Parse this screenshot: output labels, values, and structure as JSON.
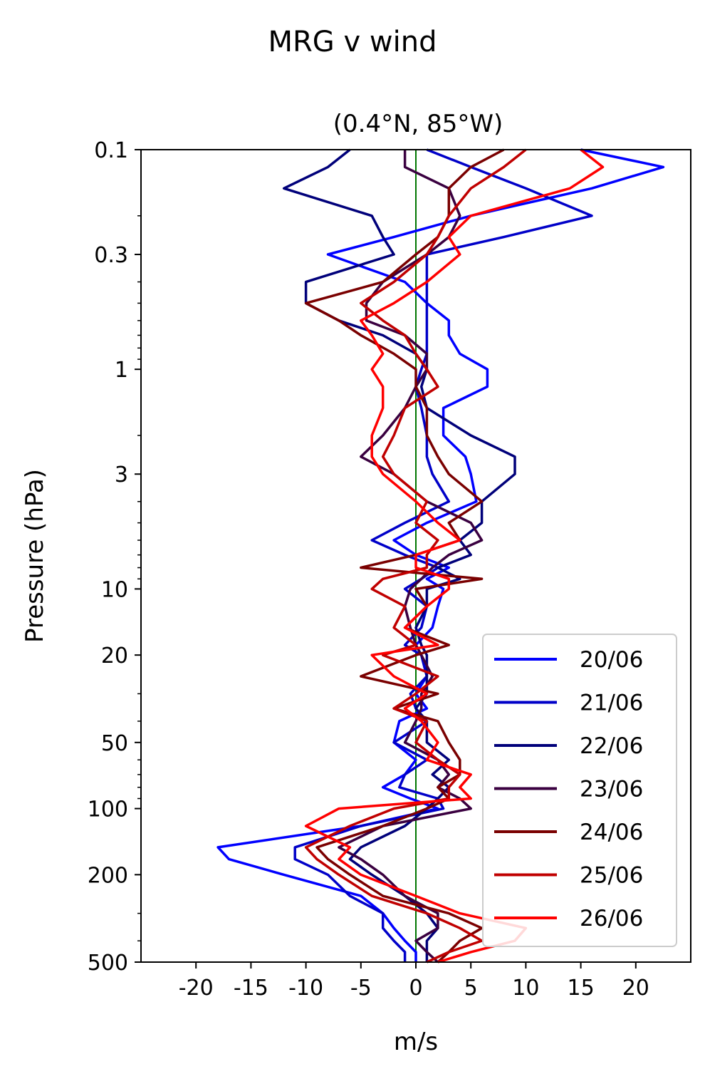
{
  "chart_data": {
    "type": "line",
    "title": "MRG v wind",
    "subtitle": "(0.4°N, 85°W)",
    "xlabel": "m/s",
    "ylabel": "Pressure (hPa)",
    "xlim": [
      -25,
      25
    ],
    "ylim": [
      500,
      0.1
    ],
    "yscale": "log",
    "xticks": [
      -20,
      -15,
      -10,
      -5,
      0,
      5,
      10,
      15,
      20
    ],
    "xtick_labels": [
      "-20",
      "-15",
      "-10",
      "-5",
      "0",
      "5",
      "10",
      "15",
      "20"
    ],
    "yticks": [
      0.1,
      0.3,
      1,
      3,
      10,
      20,
      50,
      100,
      200,
      500
    ],
    "ytick_labels": [
      "0.1",
      "0.3",
      "1",
      "3",
      "10",
      "20",
      "50",
      "100",
      "200",
      "500"
    ],
    "zero_line_color": "#007700",
    "grid": false,
    "legend_position": "lower right",
    "pressure_levels": [
      0.1,
      0.12,
      0.15,
      0.2,
      0.25,
      0.3,
      0.4,
      0.5,
      0.6,
      0.7,
      0.85,
      1.0,
      1.2,
      1.5,
      2.0,
      2.5,
      3.0,
      4.0,
      5.0,
      6.0,
      7.0,
      8.0,
      9.0,
      10,
      12,
      15,
      18,
      20,
      25,
      30,
      35,
      40,
      50,
      60,
      70,
      80,
      90,
      100,
      120,
      150,
      170,
      200,
      250,
      300,
      350,
      400,
      450,
      500
    ],
    "series": [
      {
        "name": "20/06",
        "color": "#0000ff",
        "values": [
          15,
          22.5,
          16,
          5,
          -2,
          -8,
          -1,
          1,
          3,
          3,
          4,
          6.5,
          6.5,
          2.5,
          2.5,
          4.5,
          5,
          5.5,
          1,
          -2,
          0,
          3,
          1,
          2.5,
          2,
          1.5,
          0,
          0.5,
          1,
          0,
          1,
          -1.5,
          -2,
          0,
          -1,
          -3,
          -0.5,
          2,
          -5,
          -18,
          -17,
          -12,
          -5,
          -3,
          -2,
          -1,
          0,
          0
        ]
      },
      {
        "name": "21/06",
        "color": "#0000c8",
        "values": [
          1,
          5,
          10,
          16,
          8,
          1,
          1,
          1,
          1,
          1,
          1,
          0.5,
          0,
          0.5,
          1,
          1,
          1.5,
          3,
          -1,
          -4,
          -1,
          2,
          0.5,
          -1,
          1,
          0.5,
          -1,
          0.5,
          1,
          -0.5,
          0,
          1,
          -2,
          1,
          -1,
          -1.5,
          2,
          2.5,
          -5,
          -11,
          -11,
          -8,
          -6,
          -3,
          -3,
          -2,
          -1,
          -1
        ]
      },
      {
        "name": "22/06",
        "color": "#00007a",
        "values": [
          -6,
          -8,
          -12,
          -4,
          -3,
          -2,
          -10,
          -10,
          -7,
          -3,
          0,
          1,
          0.5,
          1,
          5,
          9,
          9,
          6,
          6,
          4,
          5,
          2,
          4,
          1,
          1,
          0,
          0.5,
          1,
          1,
          1,
          0,
          1,
          1,
          3,
          1.5,
          3,
          2,
          1,
          -1,
          -5,
          -6,
          -4,
          -1,
          1,
          2,
          1,
          1,
          1
        ]
      },
      {
        "name": "23/06",
        "color": "#3a0040",
        "values": [
          -1,
          -1,
          3,
          4,
          3,
          1,
          -3,
          -4.5,
          -4.5,
          -1,
          1,
          1,
          0,
          -1,
          -3,
          -5,
          -2,
          1,
          5,
          6,
          3,
          1.5,
          0.5,
          -0.5,
          -1,
          -0.5,
          0,
          0.5,
          1.5,
          0.5,
          0.5,
          0,
          -1,
          2,
          3,
          2,
          4,
          5,
          -3,
          -7,
          -5,
          -3,
          -1,
          2,
          2,
          0,
          1,
          2
        ]
      },
      {
        "name": "24/06",
        "color": "#7a0000",
        "values": [
          8,
          5,
          3,
          3,
          2,
          0,
          -3,
          -10,
          -7,
          -5,
          -2,
          0,
          0,
          1,
          1,
          2,
          3,
          6,
          3,
          4,
          0,
          -5,
          6,
          0,
          1,
          -1,
          3,
          0,
          -5,
          2,
          -2,
          2,
          3,
          4,
          4,
          2,
          3,
          1,
          -3,
          -9,
          -8,
          -6,
          -3,
          3,
          6,
          4,
          3,
          2
        ]
      },
      {
        "name": "25/06",
        "color": "#c00000",
        "values": [
          10,
          8,
          5,
          3,
          2,
          1,
          -2,
          -5,
          -3,
          -1,
          0,
          1,
          2,
          -1,
          -2,
          -3,
          -2,
          1,
          0,
          2,
          1,
          1,
          -3,
          -4,
          -1,
          -2,
          0,
          -3,
          2,
          0,
          -2,
          1,
          0,
          2,
          4,
          3,
          3,
          -2,
          -6,
          -10,
          -9,
          -7,
          -4,
          1,
          4,
          6,
          3,
          1
        ]
      },
      {
        "name": "26/06",
        "color": "#ff0000",
        "values": [
          15,
          17,
          14,
          5,
          3,
          4,
          1,
          -2,
          -5,
          -4,
          -3,
          -4,
          -3,
          -3,
          -4,
          -4,
          -3,
          0,
          2,
          4,
          0,
          0,
          3,
          3,
          1,
          -1,
          2,
          -4,
          -2,
          1,
          -1,
          0.5,
          2,
          1,
          5,
          4,
          5,
          -7,
          -10,
          -6,
          -7,
          -5,
          0,
          4,
          10,
          9,
          5,
          2
        ]
      }
    ]
  }
}
